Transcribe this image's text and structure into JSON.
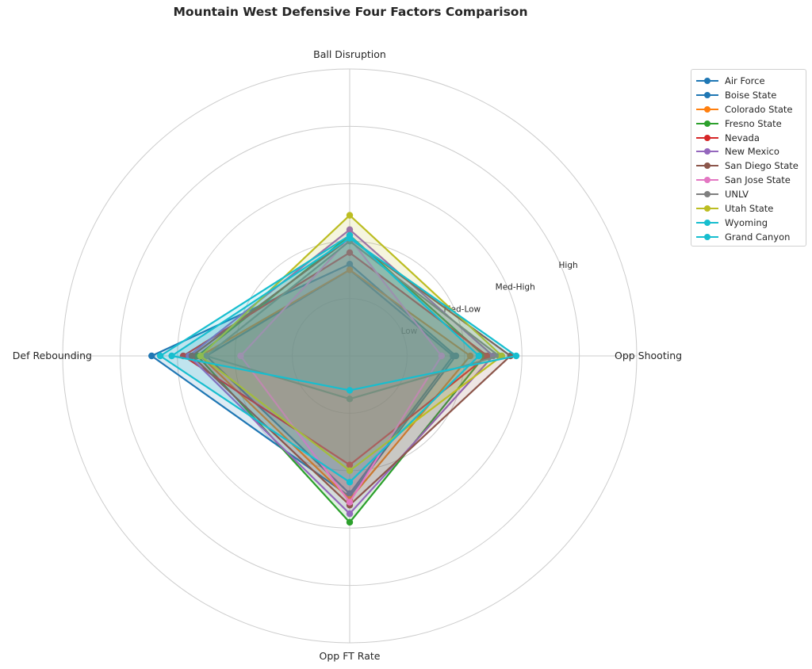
{
  "chart_data": {
    "type": "radar",
    "title": "Mountain West Defensive Four Factors Comparison",
    "axes": [
      "Ball Disruption",
      "Opp Shooting",
      "Opp FT Rate",
      "Def Rebounding"
    ],
    "ring_labels": [
      "Low",
      "Med-Low",
      "Med-High",
      "High"
    ],
    "ring_values": [
      1,
      2,
      3,
      4
    ],
    "rmax": 5,
    "grid": true,
    "legend_position": "upper-right-outside",
    "series": [
      {
        "name": "Air Force",
        "color": "#1f77b4",
        "values": [
          1.6,
          1.85,
          2.45,
          3.45
        ]
      },
      {
        "name": "Boise State",
        "color": "#1f77b4",
        "values": [
          1.5,
          1.8,
          2.4,
          2.5
        ]
      },
      {
        "name": "Colorado State",
        "color": "#ff7f0e",
        "values": [
          1.5,
          2.1,
          2.5,
          2.6
        ]
      },
      {
        "name": "Fresno State",
        "color": "#2ca02c",
        "values": [
          2.1,
          2.35,
          2.9,
          2.65
        ]
      },
      {
        "name": "Nevada",
        "color": "#d62728",
        "values": [
          1.8,
          2.4,
          1.9,
          2.9
        ]
      },
      {
        "name": "New Mexico",
        "color": "#9467bd",
        "values": [
          2.2,
          2.5,
          2.75,
          2.8
        ]
      },
      {
        "name": "San Diego State",
        "color": "#8c564b",
        "values": [
          2.05,
          2.8,
          2.6,
          2.75
        ]
      },
      {
        "name": "San Jose State",
        "color": "#e377c2",
        "values": [
          2.05,
          1.6,
          2.55,
          1.9
        ]
      },
      {
        "name": "UNLV",
        "color": "#7f7f7f",
        "values": [
          2.0,
          2.6,
          0.75,
          2.5
        ]
      },
      {
        "name": "Utah State",
        "color": "#bcbd22",
        "values": [
          2.45,
          2.65,
          2.0,
          2.6
        ]
      },
      {
        "name": "Wyoming",
        "color": "#17becf",
        "values": [
          2.1,
          2.25,
          2.2,
          3.3
        ]
      },
      {
        "name": "Grand Canyon",
        "color": "#17becf",
        "values": [
          2.05,
          2.9,
          0.6,
          3.1
        ]
      }
    ]
  }
}
